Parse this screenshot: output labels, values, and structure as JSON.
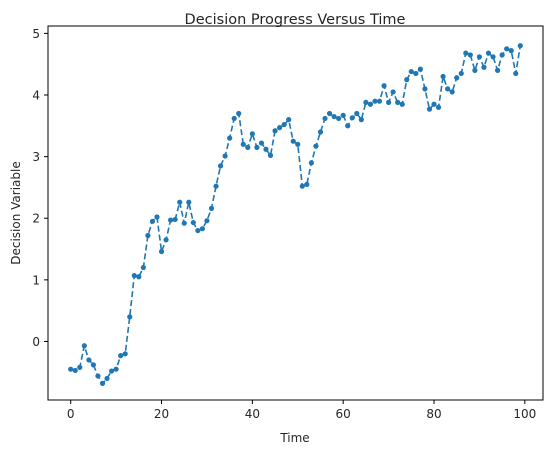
{
  "chart_data": {
    "type": "line",
    "title": "Decision Progress Versus Time",
    "xlabel": "Time",
    "ylabel": "Decision Variable",
    "xlim": [
      -5,
      104
    ],
    "ylim": [
      -0.95,
      5.12
    ],
    "xticks": [
      0,
      20,
      40,
      60,
      80,
      100
    ],
    "yticks": [
      0,
      1,
      2,
      3,
      4,
      5
    ],
    "grid": false,
    "legend": "none",
    "series": [
      {
        "color": "#1f77b4",
        "line_style": "dashed",
        "marker": "circle",
        "x": [
          0,
          1,
          2,
          3,
          4,
          5,
          6,
          7,
          8,
          9,
          10,
          11,
          12,
          13,
          14,
          15,
          16,
          17,
          18,
          19,
          20,
          21,
          22,
          23,
          24,
          25,
          26,
          27,
          28,
          29,
          30,
          31,
          32,
          33,
          34,
          35,
          36,
          37,
          38,
          39,
          40,
          41,
          42,
          43,
          44,
          45,
          46,
          47,
          48,
          49,
          50,
          51,
          52,
          53,
          54,
          55,
          56,
          57,
          58,
          59,
          60,
          61,
          62,
          63,
          64,
          65,
          66,
          67,
          68,
          69,
          70,
          71,
          72,
          73,
          74,
          75,
          76,
          77,
          78,
          79,
          80,
          81,
          82,
          83,
          84,
          85,
          86,
          87,
          88,
          89,
          90,
          91,
          92,
          93,
          94,
          95,
          96,
          97,
          98,
          99
        ],
        "values": [
          -0.45,
          -0.47,
          -0.42,
          -0.07,
          -0.3,
          -0.38,
          -0.56,
          -0.68,
          -0.6,
          -0.48,
          -0.45,
          -0.23,
          -0.2,
          0.4,
          1.07,
          1.05,
          1.2,
          1.72,
          1.95,
          2.02,
          1.46,
          1.65,
          1.97,
          1.98,
          2.26,
          1.92,
          2.26,
          1.93,
          1.8,
          1.83,
          1.96,
          2.16,
          2.52,
          2.85,
          3.01,
          3.3,
          3.62,
          3.7,
          3.2,
          3.15,
          3.37,
          3.15,
          3.22,
          3.12,
          3.02,
          3.42,
          3.47,
          3.52,
          3.6,
          3.25,
          3.2,
          2.52,
          2.55,
          2.9,
          3.17,
          3.4,
          3.62,
          3.7,
          3.65,
          3.62,
          3.67,
          3.5,
          3.63,
          3.7,
          3.6,
          3.88,
          3.85,
          3.9,
          3.9,
          4.15,
          3.88,
          4.05,
          3.88,
          3.85,
          4.25,
          4.38,
          4.35,
          4.42,
          4.1,
          3.77,
          3.85,
          3.8,
          4.3,
          4.1,
          4.05,
          4.28,
          4.35,
          4.68,
          4.65,
          4.4,
          4.62,
          4.45,
          4.68,
          4.62,
          4.4,
          4.65,
          4.75,
          4.72,
          4.35,
          4.8
        ]
      }
    ]
  }
}
